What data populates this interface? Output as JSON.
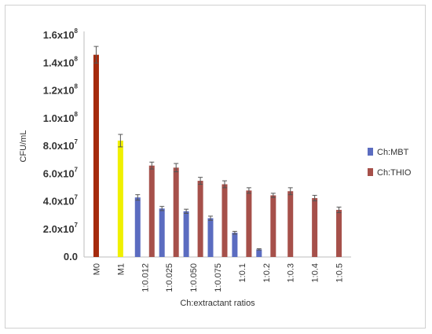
{
  "chart_data": {
    "type": "bar",
    "xlabel": "Ch:extractant ratios",
    "ylabel": "CFU/mL",
    "ylim": [
      0,
      160000000.0
    ],
    "y_ticks": [
      {
        "mant": "0.0",
        "exp": ""
      },
      {
        "mant": "2.0x10",
        "exp": "7"
      },
      {
        "mant": "4.0x10",
        "exp": "7"
      },
      {
        "mant": "6.0x10",
        "exp": "7"
      },
      {
        "mant": "8.0x10",
        "exp": "7"
      },
      {
        "mant": "1.0x10",
        "exp": "8"
      },
      {
        "mant": "1.2x10",
        "exp": "8"
      },
      {
        "mant": "1.4x10",
        "exp": "8"
      },
      {
        "mant": "1.6x10",
        "exp": "8"
      }
    ],
    "y_tick_values": [
      0,
      20000000.0,
      40000000.0,
      60000000.0,
      80000000.0,
      100000000.0,
      120000000.0,
      140000000.0,
      160000000.0
    ],
    "categories": [
      "M0",
      "M1",
      "1:0.012",
      "1:0.025",
      "1:0.050",
      "1:0.075",
      "1:0.1",
      "1:0.2",
      "1:0.3",
      "1:0.4",
      "1:0.5"
    ],
    "controls": [
      {
        "category": "M0",
        "value": 146000000.0,
        "error": 6000000.0,
        "color": "#a52a0c"
      },
      {
        "category": "M1",
        "value": 84000000.0,
        "error": 4500000.0,
        "color": "#f0f000"
      }
    ],
    "series": [
      {
        "name": "Ch:MBT",
        "color": "#5b6cc0",
        "values": [
          null,
          null,
          43000000.0,
          35000000.0,
          33000000.0,
          28000000.0,
          17500000.0,
          5500000.0,
          null,
          null,
          null
        ],
        "errors": [
          null,
          null,
          2000000.0,
          1500000.0,
          1500000.0,
          1500000.0,
          1000000.0,
          500000.0,
          null,
          null,
          null
        ]
      },
      {
        "name": "Ch:THIO",
        "color": "#a6504a",
        "values": [
          null,
          null,
          66000000.0,
          64500000.0,
          55000000.0,
          52500000.0,
          48000000.0,
          44500000.0,
          47500000.0,
          42500000.0,
          34000000.0
        ],
        "errors": [
          null,
          null,
          2500000.0,
          3000000.0,
          2500000.0,
          2500000.0,
          2000000.0,
          1500000.0,
          2500000.0,
          2000000.0,
          2000000.0
        ]
      }
    ],
    "legend": "right",
    "grid": false
  }
}
